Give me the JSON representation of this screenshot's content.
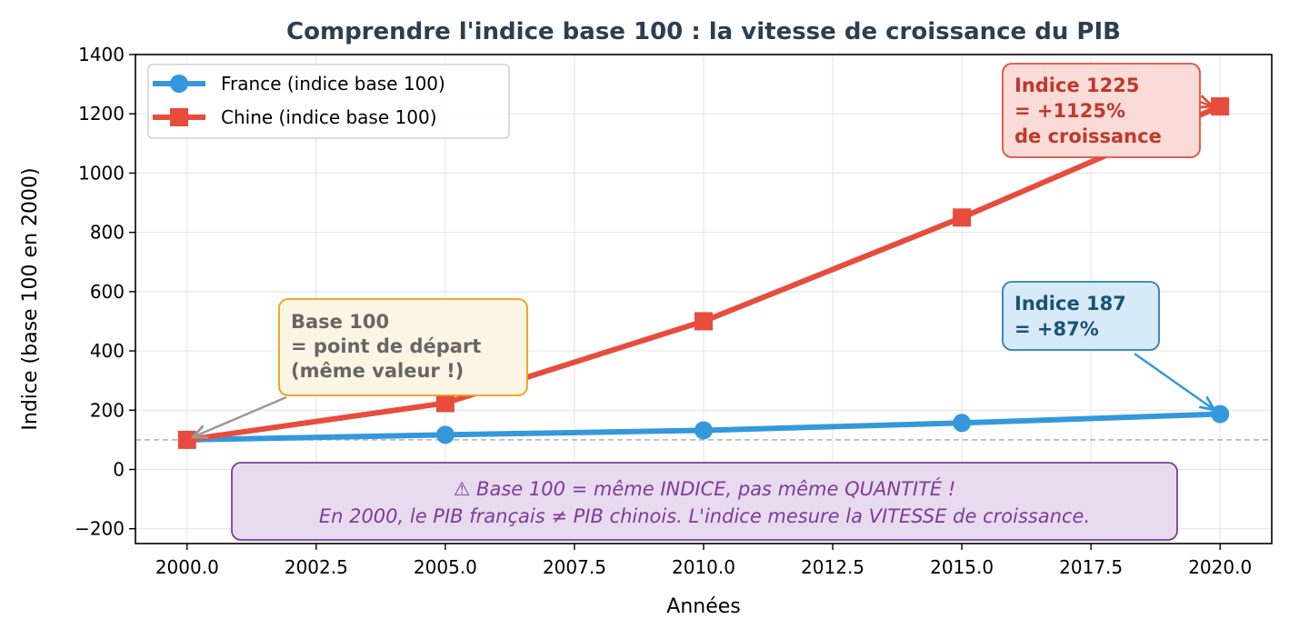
{
  "chart_data": {
    "type": "line",
    "title": "Comprendre l'indice base 100 : la vitesse de croissance du PIB",
    "xlabel": "Années",
    "ylabel": "Indice (base 100 en 2000)",
    "xlim": [
      1999,
      2021
    ],
    "ylim": [
      -250,
      1400
    ],
    "xticks": [
      2000,
      2002.5,
      2005,
      2007.5,
      2010,
      2012.5,
      2015,
      2017.5,
      2020
    ],
    "xtick_labels": [
      "2000.0",
      "2002.5",
      "2005.0",
      "2007.5",
      "2010.0",
      "2012.5",
      "2015.0",
      "2017.5",
      "2020.0"
    ],
    "yticks": [
      -200,
      0,
      200,
      400,
      600,
      800,
      1000,
      1200,
      1400
    ],
    "ytick_labels": [
      "−200",
      "0",
      "200",
      "400",
      "600",
      "800",
      "1000",
      "1200",
      "1400"
    ],
    "grid": true,
    "legend_position": "top-left",
    "x": [
      2000,
      2005,
      2010,
      2015,
      2020
    ],
    "series": [
      {
        "name": "France (indice base 100)",
        "values": [
          100,
          117,
          132,
          157,
          187
        ],
        "color": "#3498db",
        "marker": "circle"
      },
      {
        "name": "Chine (indice base 100)",
        "values": [
          100,
          224,
          500,
          850,
          1225
        ],
        "color": "#e74c3c",
        "marker": "square"
      }
    ],
    "reference_line": {
      "y": 100,
      "style": "dashed",
      "color": "#bbbbbb"
    },
    "annotations": {
      "base": {
        "lines": [
          "Base 100",
          "= point de départ",
          "(même valeur !)"
        ],
        "point": [
          2000,
          100
        ]
      },
      "chine": {
        "lines": [
          "Indice 1225",
          "= +1125%",
          "de croissance"
        ],
        "point": [
          2020,
          1225
        ]
      },
      "france": {
        "lines": [
          "Indice 187",
          "= +87%"
        ],
        "point": [
          2020,
          187
        ]
      },
      "note": {
        "lines": [
          "⚠ Base 100 = même INDICE, pas même QUANTITÉ !",
          "En 2000, le PIB français ≠ PIB chinois. L'indice mesure la VITESSE de croissance."
        ]
      }
    }
  }
}
